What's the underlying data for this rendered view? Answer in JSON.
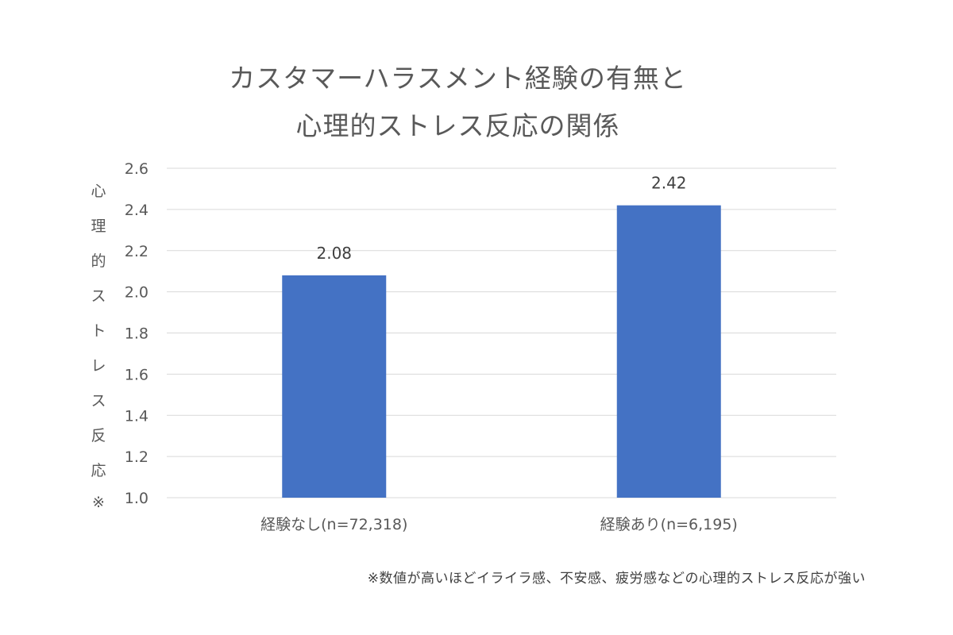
{
  "chart_data": {
    "type": "bar",
    "title_lines": [
      "カスタマーハラスメント経験の有無と",
      "心理的ストレス反応の関係"
    ],
    "categories": [
      "経験なし(n=72,318)",
      "経験あり(n=6,195)"
    ],
    "values": [
      2.08,
      2.42
    ],
    "data_labels": [
      "2.08",
      "2.42"
    ],
    "ylabel": "心理的ストレス反応※",
    "ylim": [
      1.0,
      2.6
    ],
    "yticks": [
      "1.0",
      "1.2",
      "1.4",
      "1.6",
      "1.8",
      "2.0",
      "2.2",
      "2.4",
      "2.6"
    ],
    "grid": true,
    "bar_color": "#4472C4",
    "footnote": "※数値が高いほどイライラ感、不安感、疲労感などの心理的ストレス反応が強い"
  }
}
